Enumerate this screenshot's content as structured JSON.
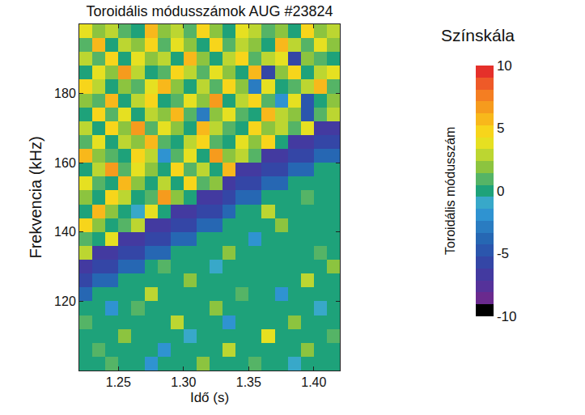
{
  "chart_data": {
    "type": "heatmap",
    "title": "Toroidális módusszámok AUG #23824",
    "xlabel": "Idő (s)",
    "ylabel": "Frekvencia (kHz)",
    "xlim": [
      1.22,
      1.42
    ],
    "ylim": [
      100,
      200
    ],
    "xticks": [
      1.25,
      {
        "value": 1.3,
        "label": "1.30"
      },
      1.35,
      {
        "value": 1.4,
        "label": "1.40"
      }
    ],
    "yticks": [
      120,
      140,
      160,
      180
    ],
    "grid": false,
    "x": [
      1.225,
      1.235,
      1.245,
      1.255,
      1.265,
      1.275,
      1.285,
      1.295,
      1.305,
      1.315,
      1.325,
      1.335,
      1.345,
      1.355,
      1.365,
      1.375,
      1.385,
      1.395,
      1.405,
      1.415
    ],
    "y": [
      102,
      106,
      110,
      114,
      118,
      122,
      126,
      130,
      134,
      138,
      142,
      146,
      150,
      154,
      158,
      162,
      166,
      170,
      174,
      178,
      182,
      186,
      190,
      194,
      198
    ],
    "z": [
      [
        0,
        0,
        1,
        0,
        0,
        -2,
        0,
        0,
        0,
        2,
        0,
        0,
        0,
        1,
        0,
        0,
        -1,
        0,
        0,
        0
      ],
      [
        0,
        1,
        0,
        0,
        0,
        0,
        -2,
        0,
        0,
        0,
        0,
        3,
        0,
        0,
        0,
        0,
        0,
        2,
        0,
        0
      ],
      [
        0,
        0,
        0,
        2,
        0,
        0,
        0,
        0,
        -1,
        0,
        0,
        0,
        0,
        0,
        4,
        0,
        0,
        0,
        0,
        1
      ],
      [
        1,
        0,
        0,
        0,
        0,
        0,
        0,
        3,
        0,
        0,
        0,
        -2,
        0,
        0,
        0,
        0,
        2,
        0,
        0,
        0
      ],
      [
        0,
        0,
        -2,
        0,
        1,
        0,
        0,
        0,
        0,
        0,
        2,
        0,
        0,
        0,
        0,
        0,
        0,
        0,
        -1,
        0
      ],
      [
        -4,
        0,
        0,
        0,
        0,
        3,
        0,
        0,
        0,
        0,
        0,
        0,
        1,
        0,
        0,
        -2,
        0,
        0,
        0,
        0
      ],
      [
        -6,
        -4,
        -4,
        0,
        0,
        0,
        0,
        0,
        2,
        0,
        0,
        0,
        0,
        0,
        0,
        0,
        0,
        3,
        0,
        0
      ],
      [
        -7,
        -6,
        -6,
        -4,
        -4,
        0,
        1,
        0,
        0,
        0,
        -1,
        0,
        0,
        0,
        0,
        0,
        0,
        0,
        0,
        2
      ],
      [
        3,
        -7,
        -7,
        -6,
        -6,
        -4,
        -4,
        0,
        0,
        0,
        0,
        2,
        0,
        0,
        0,
        0,
        0,
        0,
        1,
        0
      ],
      [
        1,
        0,
        4,
        -7,
        -7,
        -6,
        -6,
        -4,
        -4,
        0,
        0,
        0,
        0,
        -2,
        0,
        0,
        0,
        0,
        0,
        0
      ],
      [
        5,
        2,
        0,
        1,
        3,
        -7,
        -7,
        -6,
        -6,
        -4,
        -4,
        0,
        0,
        0,
        0,
        2,
        0,
        0,
        0,
        0
      ],
      [
        0,
        6,
        2,
        0,
        -1,
        4,
        0,
        -7,
        -7,
        -6,
        -6,
        -4,
        0,
        0,
        3,
        0,
        0,
        0,
        0,
        0
      ],
      [
        2,
        0,
        5,
        3,
        0,
        1,
        7,
        2,
        0,
        -7,
        -7,
        -6,
        -4,
        -4,
        0,
        0,
        0,
        1,
        0,
        0
      ],
      [
        4,
        1,
        0,
        6,
        2,
        0,
        3,
        0,
        5,
        1,
        2,
        -7,
        -6,
        -6,
        -4,
        -4,
        0,
        0,
        0,
        0
      ],
      [
        0,
        3,
        7,
        1,
        4,
        2,
        0,
        5,
        1,
        3,
        0,
        6,
        -7,
        -7,
        -6,
        -6,
        -4,
        -4,
        0,
        0
      ],
      [
        6,
        2,
        1,
        0,
        5,
        3,
        -2,
        1,
        4,
        0,
        7,
        2,
        3,
        1,
        -7,
        -7,
        -6,
        -6,
        -4,
        -4
      ],
      [
        1,
        4,
        0,
        3,
        2,
        6,
        1,
        0,
        3,
        5,
        1,
        0,
        4,
        2,
        5,
        0,
        -7,
        -7,
        -6,
        -6
      ],
      [
        3,
        0,
        5,
        2,
        7,
        1,
        4,
        2,
        0,
        6,
        3,
        1,
        0,
        5,
        2,
        3,
        1,
        4,
        -7,
        -7
      ],
      [
        0,
        5,
        1,
        4,
        0,
        3,
        2,
        6,
        1,
        -3,
        2,
        4,
        1,
        0,
        6,
        3,
        2,
        -5,
        1,
        3
      ],
      [
        2,
        1,
        6,
        0,
        3,
        5,
        0,
        1,
        4,
        2,
        7,
        0,
        3,
        5,
        1,
        -2,
        4,
        -5,
        0,
        2
      ],
      [
        5,
        3,
        0,
        2,
        1,
        4,
        6,
        2,
        0,
        3,
        1,
        5,
        2,
        -3,
        4,
        0,
        1,
        3,
        6,
        1
      ],
      [
        0,
        4,
        2,
        7,
        3,
        0,
        1,
        5,
        3,
        1,
        4,
        2,
        0,
        6,
        -6,
        2,
        5,
        0,
        3,
        4
      ],
      [
        3,
        1,
        5,
        0,
        4,
        2,
        3,
        0,
        6,
        2,
        0,
        3,
        5,
        1,
        3,
        4,
        -6,
        2,
        1,
        0
      ],
      [
        1,
        6,
        0,
        3,
        2,
        5,
        1,
        4,
        2,
        0,
        5,
        1,
        3,
        2,
        0,
        6,
        3,
        1,
        4,
        2
      ],
      [
        4,
        2,
        3,
        1,
        0,
        6,
        2,
        3,
        1,
        5,
        2,
        0,
        4,
        3,
        1,
        2,
        0,
        5,
        2,
        3
      ]
    ],
    "colorbar": {
      "title": "Színskála",
      "label": "Toroidális módusszám",
      "range": [
        -10,
        10
      ],
      "ticks": [
        -10,
        -5,
        0,
        5,
        10
      ]
    }
  }
}
